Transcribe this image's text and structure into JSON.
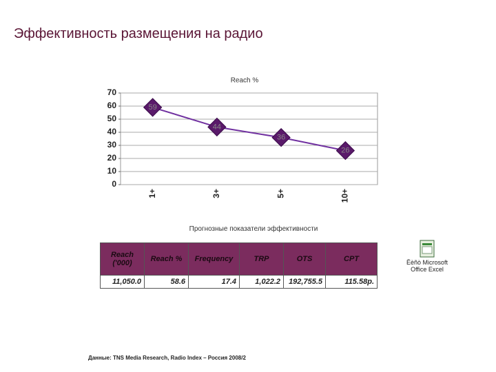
{
  "title": "Эффективность размещения на радио",
  "chart_data": {
    "type": "line",
    "title": "Reach %",
    "categories": [
      "1+",
      "3+",
      "5+",
      "10+"
    ],
    "series": [
      {
        "name": "Reach %",
        "color": "#7030a0",
        "values": [
          59,
          44,
          36,
          26
        ]
      }
    ],
    "ylim": [
      0,
      70
    ],
    "yticks": [
      0,
      10,
      20,
      30,
      40,
      50,
      60,
      70
    ],
    "grid": true
  },
  "table": {
    "title": "Прогнозные показатели эффективности",
    "header": [
      "Reach ('000)",
      "Reach %",
      "Frequency",
      "TRP",
      "OTS",
      "CPT"
    ],
    "rows": [
      [
        "11,050.0",
        "58.6",
        "17.4",
        "1,022.2",
        "192,755.5",
        "115.58р."
      ]
    ]
  },
  "icon_label": [
    "Ëèñò Microsoft",
    "Office Excel"
  ],
  "source": "Данные: TNS Media Research, Radio Index – Россия 2008/2"
}
